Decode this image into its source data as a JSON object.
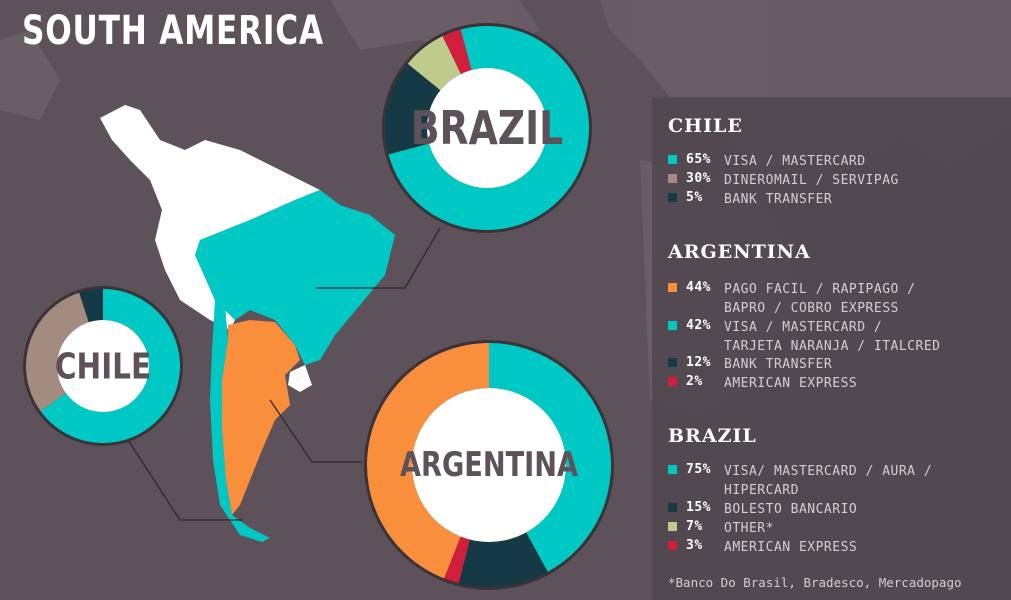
{
  "title": "SOUTH AMERICA",
  "colors": {
    "background": "#5d5259",
    "visa_mastercard": "#00c8c4",
    "secondary_brown": "#a38c7f",
    "bank_transfer": "#163a45",
    "american_express": "#d01f3c",
    "other": "#bfcb8a",
    "pago_facil": "#f98f3c",
    "map_white": "#ffffff"
  },
  "legend": {
    "chile": {
      "title": "CHILE",
      "items": [
        {
          "pct": "65%",
          "lines": [
            "VISA / MASTERCARD"
          ]
        },
        {
          "pct": "30%",
          "lines": [
            "DINEROMAIL / SERVIPAG"
          ]
        },
        {
          "pct": "5%",
          "lines": [
            "BANK TRANSFER"
          ]
        }
      ]
    },
    "argentina": {
      "title": "ARGENTINA",
      "items": [
        {
          "pct": "44%",
          "lines": [
            "PAGO FACIL / RAPIPAGO /",
            "BAPRO / COBRO EXPRESS"
          ]
        },
        {
          "pct": "42%",
          "lines": [
            "VISA / MASTERCARD /",
            "TARJETA NARANJA / ITALCRED"
          ]
        },
        {
          "pct": "12%",
          "lines": [
            "BANK TRANSFER"
          ]
        },
        {
          "pct": "2%",
          "lines": [
            "AMERICAN EXPRESS"
          ]
        }
      ]
    },
    "brazil": {
      "title": "BRAZIL",
      "items": [
        {
          "pct": "75%",
          "lines": [
            "VISA/ MASTERCARD / AURA /",
            "HIPERCARD"
          ]
        },
        {
          "pct": "15%",
          "lines": [
            "BOLESTO BANCARIO"
          ]
        },
        {
          "pct": "7%",
          "lines": [
            "OTHER*"
          ]
        },
        {
          "pct": "3%",
          "lines": [
            "AMERICAN EXPRESS"
          ]
        }
      ]
    },
    "footnote": "*Banco Do Brasil, Bradesco, Mercadopago"
  },
  "chart_data": [
    {
      "type": "pie",
      "title": "BRAZIL",
      "categories": [
        "VISA/ MASTERCARD / AURA / HIPERCARD",
        "BOLESTO BANCARIO",
        "OTHER*",
        "AMERICAN EXPRESS"
      ],
      "values": [
        75,
        15,
        7,
        3
      ],
      "colors": [
        "#00c8c4",
        "#163a45",
        "#bfcb8a",
        "#d01f3c"
      ]
    },
    {
      "type": "pie",
      "title": "CHILE",
      "categories": [
        "VISA / MASTERCARD",
        "DINEROMAIL / SERVIPAG",
        "BANK TRANSFER"
      ],
      "values": [
        65,
        30,
        5
      ],
      "colors": [
        "#00c8c4",
        "#a38c7f",
        "#163a45"
      ]
    },
    {
      "type": "pie",
      "title": "ARGENTINA",
      "categories": [
        "VISA / MASTERCARD / TARJETA NARANJA / ITALCRED",
        "BANK TRANSFER",
        "AMERICAN EXPRESS",
        "PAGO FACIL / RAPIPAGO / BAPRO / COBRO EXPRESS"
      ],
      "values": [
        42,
        12,
        2,
        44
      ],
      "colors": [
        "#00c8c4",
        "#163a45",
        "#d01f3c",
        "#f98f3c"
      ]
    }
  ]
}
